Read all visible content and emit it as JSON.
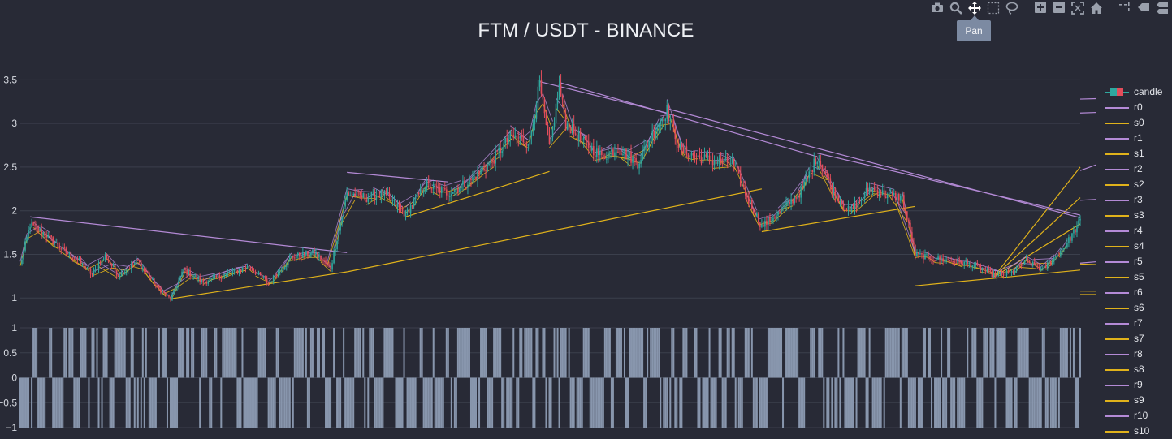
{
  "title": "FTM / USDT - BINANCE",
  "tooltip": "Pan",
  "modebar": [
    {
      "name": "camera-icon",
      "glyph": "camera",
      "active": false
    },
    {
      "name": "zoom-icon",
      "glyph": "zoom",
      "active": false
    },
    {
      "name": "pan-icon",
      "glyph": "pan",
      "active": true
    },
    {
      "name": "box-select-icon",
      "glyph": "box",
      "active": false
    },
    {
      "name": "lasso-select-icon",
      "glyph": "lasso",
      "active": false
    },
    {
      "name": "zoom-in-icon",
      "glyph": "plus",
      "active": false
    },
    {
      "name": "zoom-out-icon",
      "glyph": "minus",
      "active": false
    },
    {
      "name": "autoscale-icon",
      "glyph": "autoscale",
      "active": false
    },
    {
      "name": "reset-axes-icon",
      "glyph": "home",
      "active": false
    },
    {
      "name": "spike-lines-icon",
      "glyph": "spike",
      "active": false
    },
    {
      "name": "hover-closest-icon",
      "glyph": "hover1",
      "active": false
    },
    {
      "name": "hover-compare-icon",
      "glyph": "hover2",
      "active": false
    }
  ],
  "colors": {
    "background": "#282a36",
    "grid": "#3b3f4c",
    "increasing": "#2fa89f",
    "decreasing": "#e34d5b",
    "resistance": "#b48ad6",
    "support": "#e0b21b",
    "signal": "#8896ad"
  },
  "chart_data": [
    {
      "type": "candlestick",
      "title": "FTM / USDT - BINANCE",
      "ylim": [
        0.9,
        3.55
      ],
      "yticks": [
        "1",
        "1.5",
        "2",
        "2.5",
        "3",
        "3.5"
      ],
      "ytick_values": [
        1,
        1.5,
        2,
        2.5,
        3,
        3.5
      ],
      "grid": true,
      "legend_position": "right",
      "n_candles": 650,
      "close_anchors": [
        [
          0,
          1.38
        ],
        [
          6,
          1.84
        ],
        [
          16,
          1.72
        ],
        [
          26,
          1.55
        ],
        [
          36,
          1.42
        ],
        [
          44,
          1.27
        ],
        [
          52,
          1.48
        ],
        [
          60,
          1.26
        ],
        [
          72,
          1.42
        ],
        [
          84,
          1.12
        ],
        [
          92,
          0.99
        ],
        [
          100,
          1.32
        ],
        [
          112,
          1.18
        ],
        [
          126,
          1.27
        ],
        [
          140,
          1.36
        ],
        [
          152,
          1.17
        ],
        [
          166,
          1.47
        ],
        [
          180,
          1.52
        ],
        [
          190,
          1.34
        ],
        [
          200,
          2.2
        ],
        [
          212,
          2.15
        ],
        [
          222,
          2.2
        ],
        [
          236,
          1.96
        ],
        [
          248,
          2.3
        ],
        [
          262,
          2.2
        ],
        [
          276,
          2.35
        ],
        [
          288,
          2.55
        ],
        [
          300,
          2.85
        ],
        [
          312,
          2.8
        ],
        [
          318,
          3.45
        ],
        [
          324,
          2.7
        ],
        [
          330,
          3.42
        ],
        [
          334,
          3.0
        ],
        [
          344,
          2.8
        ],
        [
          356,
          2.62
        ],
        [
          366,
          2.72
        ],
        [
          378,
          2.55
        ],
        [
          390,
          2.98
        ],
        [
          396,
          3.15
        ],
        [
          404,
          2.7
        ],
        [
          414,
          2.62
        ],
        [
          426,
          2.56
        ],
        [
          436,
          2.55
        ],
        [
          444,
          2.2
        ],
        [
          454,
          1.82
        ],
        [
          466,
          2.0
        ],
        [
          478,
          2.22
        ],
        [
          488,
          2.62
        ],
        [
          498,
          2.22
        ],
        [
          508,
          1.98
        ],
        [
          520,
          2.26
        ],
        [
          530,
          2.18
        ],
        [
          540,
          2.15
        ],
        [
          548,
          1.5
        ],
        [
          560,
          1.45
        ],
        [
          572,
          1.42
        ],
        [
          584,
          1.38
        ],
        [
          596,
          1.26
        ],
        [
          606,
          1.28
        ],
        [
          616,
          1.42
        ],
        [
          626,
          1.32
        ],
        [
          640,
          1.6
        ],
        [
          656,
          2.1
        ],
        [
          670,
          2.32
        ],
        [
          684,
          2.26
        ],
        [
          700,
          2.45
        ],
        [
          712,
          3.08
        ],
        [
          720,
          2.8
        ],
        [
          732,
          3.05
        ],
        [
          740,
          2.45
        ],
        [
          752,
          2.28
        ],
        [
          762,
          3.08
        ],
        [
          772,
          2.8
        ],
        [
          782,
          3.34
        ],
        [
          790,
          2.9
        ],
        [
          800,
          3.05
        ],
        [
          808,
          2.86
        ],
        [
          816,
          2.92
        ],
        [
          826,
          2.7
        ],
        [
          834,
          2.35
        ],
        [
          842,
          2.0
        ],
        [
          852,
          2.24
        ],
        [
          862,
          2.12
        ],
        [
          874,
          2.1
        ],
        [
          886,
          2.08
        ],
        [
          900,
          1.98
        ],
        [
          912,
          2.05
        ],
        [
          924,
          2.38
        ],
        [
          936,
          2.2
        ],
        [
          950,
          2.0
        ],
        [
          962,
          1.93
        ],
        [
          974,
          2.08
        ],
        [
          986,
          1.96
        ],
        [
          1000,
          1.72
        ],
        [
          1014,
          1.62
        ],
        [
          1026,
          1.48
        ],
        [
          1036,
          1.32
        ],
        [
          1046,
          1.55
        ],
        [
          1058,
          1.72
        ],
        [
          1068,
          1.85
        ],
        [
          1076,
          2.05
        ],
        [
          1086,
          1.72
        ],
        [
          1098,
          1.55
        ],
        [
          1110,
          1.35
        ],
        [
          1122,
          1.22
        ],
        [
          1132,
          1.12
        ],
        [
          1140,
          1.04
        ],
        [
          1150,
          1.15
        ],
        [
          1160,
          1.2
        ],
        [
          1174,
          1.23
        ],
        [
          1188,
          1.3
        ],
        [
          1200,
          1.34
        ],
        [
          1210,
          1.38
        ]
      ],
      "resistance_lines": [
        {
          "name": "r0",
          "x0": 850,
          "y0": 3.38,
          "x1": 1300,
          "y1": 3.28
        },
        {
          "name": "r1",
          "x0": 330,
          "y0": 3.47,
          "x1": 488,
          "y1": 2.62
        },
        {
          "name": "r2",
          "x0": 318,
          "y0": 3.48,
          "x1": 396,
          "y1": 3.12
        },
        {
          "name": "r3",
          "x0": 396,
          "y0": 3.17,
          "x1": 712,
          "y1": 1.92
        },
        {
          "name": "r4",
          "x0": 488,
          "y0": 2.66,
          "x1": 712,
          "y1": 1.95
        },
        {
          "name": "r5",
          "x0": 712,
          "y0": 3.16,
          "x1": 850,
          "y1": 3.12
        },
        {
          "name": "r6",
          "x0": 782,
          "y0": 3.36,
          "x1": 924,
          "y1": 2.46
        },
        {
          "name": "r7",
          "x0": 924,
          "y0": 2.4,
          "x1": 1076,
          "y1": 2.12
        },
        {
          "name": "r8",
          "x0": 1076,
          "y0": 2.07,
          "x1": 1210,
          "y1": 1.4
        },
        {
          "name": "r9",
          "x0": 6,
          "y0": 1.93,
          "x1": 200,
          "y1": 1.52
        },
        {
          "name": "r10",
          "x0": 200,
          "y0": 2.44,
          "x1": 262,
          "y1": 2.33
        }
      ],
      "support_lines": [
        {
          "name": "s0",
          "x0": 92,
          "y0": 0.99,
          "x1": 200,
          "y1": 1.3
        },
        {
          "name": "s1",
          "x0": 200,
          "y0": 1.3,
          "x1": 454,
          "y1": 2.25
        },
        {
          "name": "s2",
          "x0": 236,
          "y0": 1.93,
          "x1": 324,
          "y1": 2.45
        },
        {
          "name": "s3",
          "x0": 454,
          "y0": 1.76,
          "x1": 548,
          "y1": 2.05
        },
        {
          "name": "s4",
          "x0": 548,
          "y0": 1.14,
          "x1": 1036,
          "y1": 1.32
        },
        {
          "name": "s5",
          "x0": 596,
          "y0": 1.24,
          "x1": 842,
          "y1": 2.5
        },
        {
          "name": "s6",
          "x0": 596,
          "y0": 1.24,
          "x1": 986,
          "y1": 1.85
        },
        {
          "name": "s7",
          "x0": 596,
          "y0": 1.24,
          "x1": 752,
          "y1": 2.15
        },
        {
          "name": "s8",
          "x0": 1140,
          "y0": 1.03,
          "x1": 1230,
          "y1": 1.39
        },
        {
          "name": "s9",
          "x0": 1140,
          "y0": 1.03,
          "x1": 1230,
          "y1": 1.08
        },
        {
          "name": "s10",
          "x0": 1140,
          "y0": 1.03,
          "x1": 1230,
          "y1": 1.04
        }
      ]
    },
    {
      "type": "bar",
      "ylim": [
        -1,
        1
      ],
      "yticks": [
        "1",
        "0.5",
        "0",
        "−0.5",
        "−1"
      ],
      "ytick_values": [
        1,
        0.5,
        0,
        -0.5,
        -1
      ],
      "values_description_free": true,
      "n_bars": 650,
      "bar_values": "alternating +1 / -1 signal"
    }
  ],
  "legend": [
    {
      "label": "candle",
      "kind": "candle"
    },
    {
      "label": "r0",
      "kind": "resistance"
    },
    {
      "label": "s0",
      "kind": "support"
    },
    {
      "label": "r1",
      "kind": "resistance"
    },
    {
      "label": "s1",
      "kind": "support"
    },
    {
      "label": "r2",
      "kind": "resistance"
    },
    {
      "label": "s2",
      "kind": "support"
    },
    {
      "label": "r3",
      "kind": "resistance"
    },
    {
      "label": "s3",
      "kind": "support"
    },
    {
      "label": "r4",
      "kind": "resistance"
    },
    {
      "label": "s4",
      "kind": "support"
    },
    {
      "label": "r5",
      "kind": "resistance"
    },
    {
      "label": "s5",
      "kind": "support"
    },
    {
      "label": "r6",
      "kind": "resistance"
    },
    {
      "label": "s6",
      "kind": "support"
    },
    {
      "label": "r7",
      "kind": "resistance"
    },
    {
      "label": "s7",
      "kind": "support"
    },
    {
      "label": "r8",
      "kind": "resistance"
    },
    {
      "label": "s8",
      "kind": "support"
    },
    {
      "label": "r9",
      "kind": "resistance"
    },
    {
      "label": "s9",
      "kind": "support"
    },
    {
      "label": "r10",
      "kind": "resistance"
    },
    {
      "label": "s10",
      "kind": "support"
    }
  ]
}
